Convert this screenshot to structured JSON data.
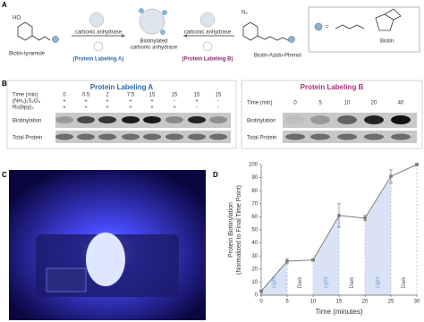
{
  "panel_labels": [
    "A",
    "B",
    "C",
    "D"
  ],
  "scheme": {
    "left_compound": "Biotin-tyramide",
    "left_arrow_top": "carbonic anhydrase",
    "left_arrow_bottom": "(Protein Labeling A)",
    "product": [
      "Biotinylated",
      "carbonic anhydrase"
    ],
    "right_arrow_top": "carbonic anhydrase",
    "right_arrow_bottom": "(Protein Labeling B)",
    "right_compound": "Biotin-Azido-Phenol",
    "legend_symbol": "=",
    "legend_label": "Biotin"
  },
  "blot_a": {
    "title": "Protein Labeling A",
    "row_headers": [
      "Time (min)",
      "(NH₄)₂S₂O₈",
      "Ru(bpy)₃"
    ],
    "rows": [
      [
        "0",
        "0.5",
        "2",
        "7.5",
        "15",
        "15",
        "15",
        "15"
      ],
      [
        "+",
        "+",
        "+",
        "+",
        "+",
        "-",
        "+",
        "-"
      ],
      [
        "+",
        "+",
        "+",
        "+",
        "+",
        "+",
        "-",
        "-"
      ]
    ],
    "band_labels": [
      "Biotinylation",
      "Total Protein"
    ]
  },
  "blot_b": {
    "title": "Protein Labeling B",
    "row_header": "Time (min)",
    "times": [
      "0",
      "5",
      "10",
      "20",
      "40"
    ],
    "band_labels": [
      "Biotinylation",
      "Total Protein"
    ]
  },
  "chart_data": {
    "type": "line",
    "xlabel": "Time (minutes)",
    "ylabel": [
      "Protein Biotinylation",
      "(Normalized to Final Time Point)"
    ],
    "x": [
      0,
      5,
      10,
      15,
      20,
      25,
      30
    ],
    "values": [
      3,
      26,
      27,
      61,
      59,
      91,
      100
    ],
    "errors": [
      1,
      2,
      1,
      9,
      2,
      5,
      1
    ],
    "color": "#7f7f7f",
    "xlim": [
      0,
      30
    ],
    "ylim": [
      0,
      100
    ],
    "xticks": [
      0,
      5,
      10,
      15,
      20,
      25,
      30
    ],
    "yticks": [
      0,
      10,
      20,
      30,
      40,
      50,
      60,
      70,
      80,
      90,
      100
    ],
    "regions": [
      {
        "label": "Light",
        "x": [
          0,
          5
        ]
      },
      {
        "label": "Dark",
        "x": [
          5,
          10
        ]
      },
      {
        "label": "Light",
        "x": [
          10,
          15
        ]
      },
      {
        "label": "Dark",
        "x": [
          15,
          20
        ]
      },
      {
        "label": "Light",
        "x": [
          20,
          25
        ]
      },
      {
        "label": "Dark",
        "x": [
          25,
          30
        ]
      }
    ]
  }
}
